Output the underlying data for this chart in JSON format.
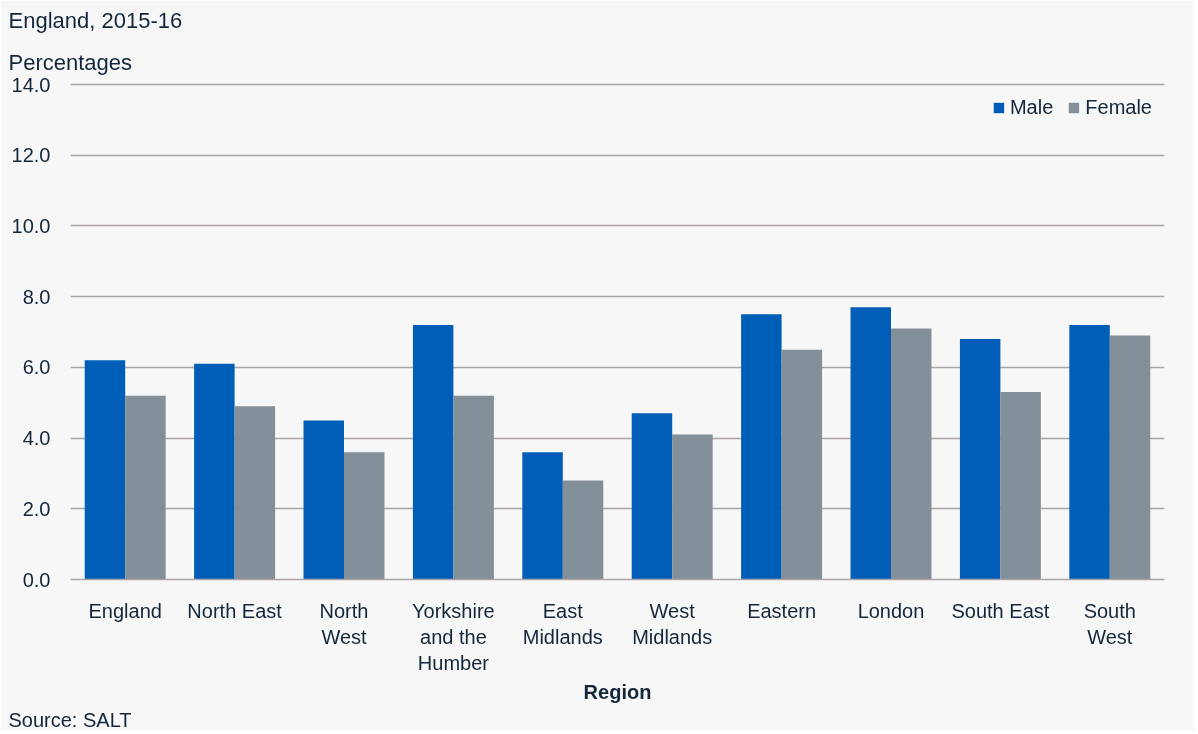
{
  "chart_data": {
    "type": "bar",
    "title": "England, 2015-16",
    "ylabel": "Percentages",
    "xlabel": "Region",
    "annotations": [
      "Source: SALT"
    ],
    "categories": [
      "England",
      "North East",
      "North West",
      "Yorkshire and the Humber",
      "East Midlands",
      "West Midlands",
      "Eastern",
      "London",
      "South East",
      "South West"
    ],
    "series": [
      {
        "name": "Male",
        "color": "#005eb8",
        "values": [
          6.2,
          6.1,
          4.5,
          7.2,
          3.6,
          4.7,
          7.5,
          7.7,
          6.8,
          7.2
        ]
      },
      {
        "name": "Female",
        "color": "#838f99",
        "values": [
          5.2,
          4.9,
          3.6,
          5.2,
          2.8,
          4.1,
          6.5,
          7.1,
          5.3,
          6.9
        ]
      }
    ],
    "ylim": [
      0,
      14
    ],
    "yticks": [
      {
        "value": 0,
        "label": "0.0"
      },
      {
        "value": 2,
        "label": "2.0"
      },
      {
        "value": 4,
        "label": "4.0"
      },
      {
        "value": 6,
        "label": "6.0"
      },
      {
        "value": 8,
        "label": "8.0"
      },
      {
        "value": 10,
        "label": "10.0"
      },
      {
        "value": 12,
        "label": "12.0"
      },
      {
        "value": 14,
        "label": "14.0"
      }
    ],
    "grid": "y",
    "legend": "top right"
  }
}
